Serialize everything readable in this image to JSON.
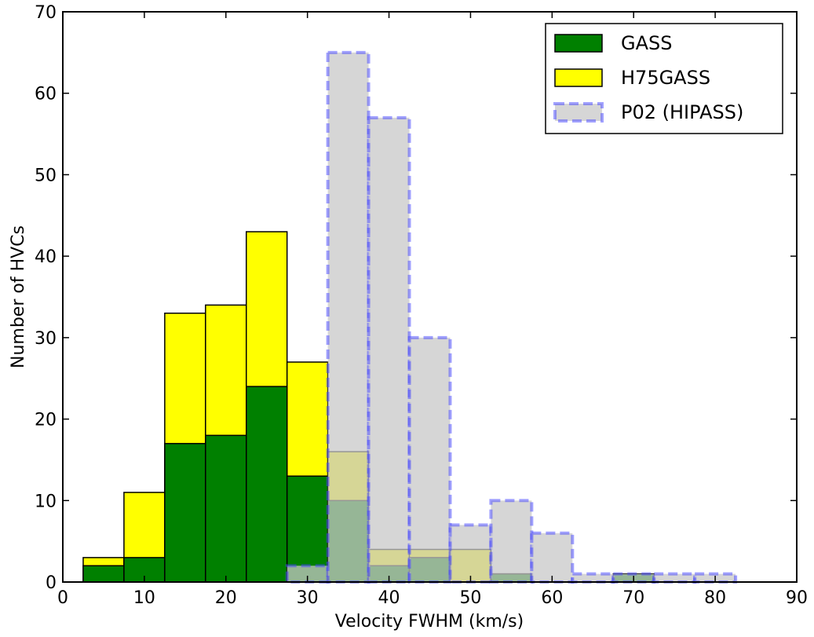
{
  "chart_data": {
    "type": "histogram",
    "x_label": "Velocity FWHM (km/s)",
    "y_label": "Number of HVCs",
    "bins": [
      2.5,
      7.5,
      12.5,
      17.5,
      22.5,
      27.5,
      32.5,
      37.5,
      42.5,
      47.5,
      52.5,
      57.5,
      62.5,
      67.5,
      72.5,
      77.5,
      82.5,
      87.5
    ],
    "series": [
      {
        "name": "GASS",
        "color": "#008000",
        "edgecolor": "#000000",
        "linestyle": "solid",
        "alpha": 1,
        "values": [
          2,
          3,
          17,
          18,
          24,
          13,
          10,
          2,
          3,
          0,
          1,
          0,
          0,
          1,
          0,
          0,
          0
        ]
      },
      {
        "name": "H75GASS",
        "color": "#ffff00",
        "edgecolor": "#000000",
        "linestyle": "solid",
        "alpha": 1,
        "values": [
          3,
          11,
          33,
          34,
          43,
          27,
          16,
          4,
          4,
          4,
          1,
          0,
          0,
          0,
          0,
          0,
          0
        ]
      },
      {
        "name": "P02 (HIPASS)",
        "color": "#c8c8c8",
        "edgecolor": "#4444ff",
        "linestyle": "dashed",
        "alpha": 0.75,
        "values": [
          0,
          0,
          0,
          0,
          0,
          2,
          65,
          57,
          30,
          7,
          10,
          6,
          1,
          1,
          1,
          1,
          0
        ]
      }
    ],
    "draw_order": [
      1,
      0,
      2
    ],
    "xlim": [
      0,
      90
    ],
    "xticks": [
      0,
      10,
      20,
      30,
      40,
      50,
      60,
      70,
      80,
      90
    ],
    "ylim": [
      0,
      70
    ],
    "yticks": [
      0,
      10,
      20,
      30,
      40,
      50,
      60,
      70
    ],
    "legend": "upper right"
  }
}
